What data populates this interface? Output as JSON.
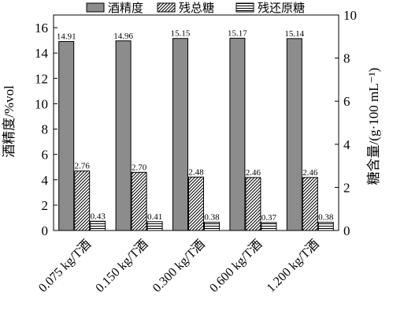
{
  "chart_data": {
    "type": "bar",
    "categories": [
      "0.075 kg/T酒",
      "0.150 kg/T酒",
      "0.300 kg/T酒",
      "0.600 kg/T酒",
      "1.200 kg/T酒"
    ],
    "series": [
      {
        "name": "酒精度",
        "axis": "left",
        "values": [
          14.91,
          14.96,
          15.15,
          15.17,
          15.14
        ],
        "fill": "#8c8c8c",
        "pattern": "solid",
        "labels": [
          "14.91",
          "14.96",
          "15.15",
          "15.17",
          "15.14"
        ]
      },
      {
        "name": "残总糖",
        "axis": "right",
        "values": [
          2.76,
          2.7,
          2.48,
          2.46,
          2.46
        ],
        "fill": "#ffffff",
        "pattern": "diagonal-hatch",
        "labels": [
          "2.76",
          "2.70",
          "2.48",
          "2.46",
          "2.46"
        ]
      },
      {
        "name": "残还原糖",
        "axis": "right",
        "values": [
          0.43,
          0.41,
          0.38,
          0.37,
          0.38
        ],
        "fill": "#ffffff",
        "pattern": "horizontal-lines",
        "labels": [
          "0.43",
          "0.41",
          "0.38",
          "0.37",
          "0.38"
        ]
      }
    ],
    "ylabel": "酒精度/%vol",
    "y2label": "糖含量/(g·100 mL⁻¹)",
    "ylim": [
      0,
      17
    ],
    "y2lim": [
      0,
      10
    ],
    "yticks": [
      0,
      2,
      4,
      6,
      8,
      10,
      12,
      14,
      16
    ],
    "y2ticks": [
      0,
      2,
      4,
      6,
      8,
      10
    ],
    "legend_position": "top",
    "grid": false
  }
}
